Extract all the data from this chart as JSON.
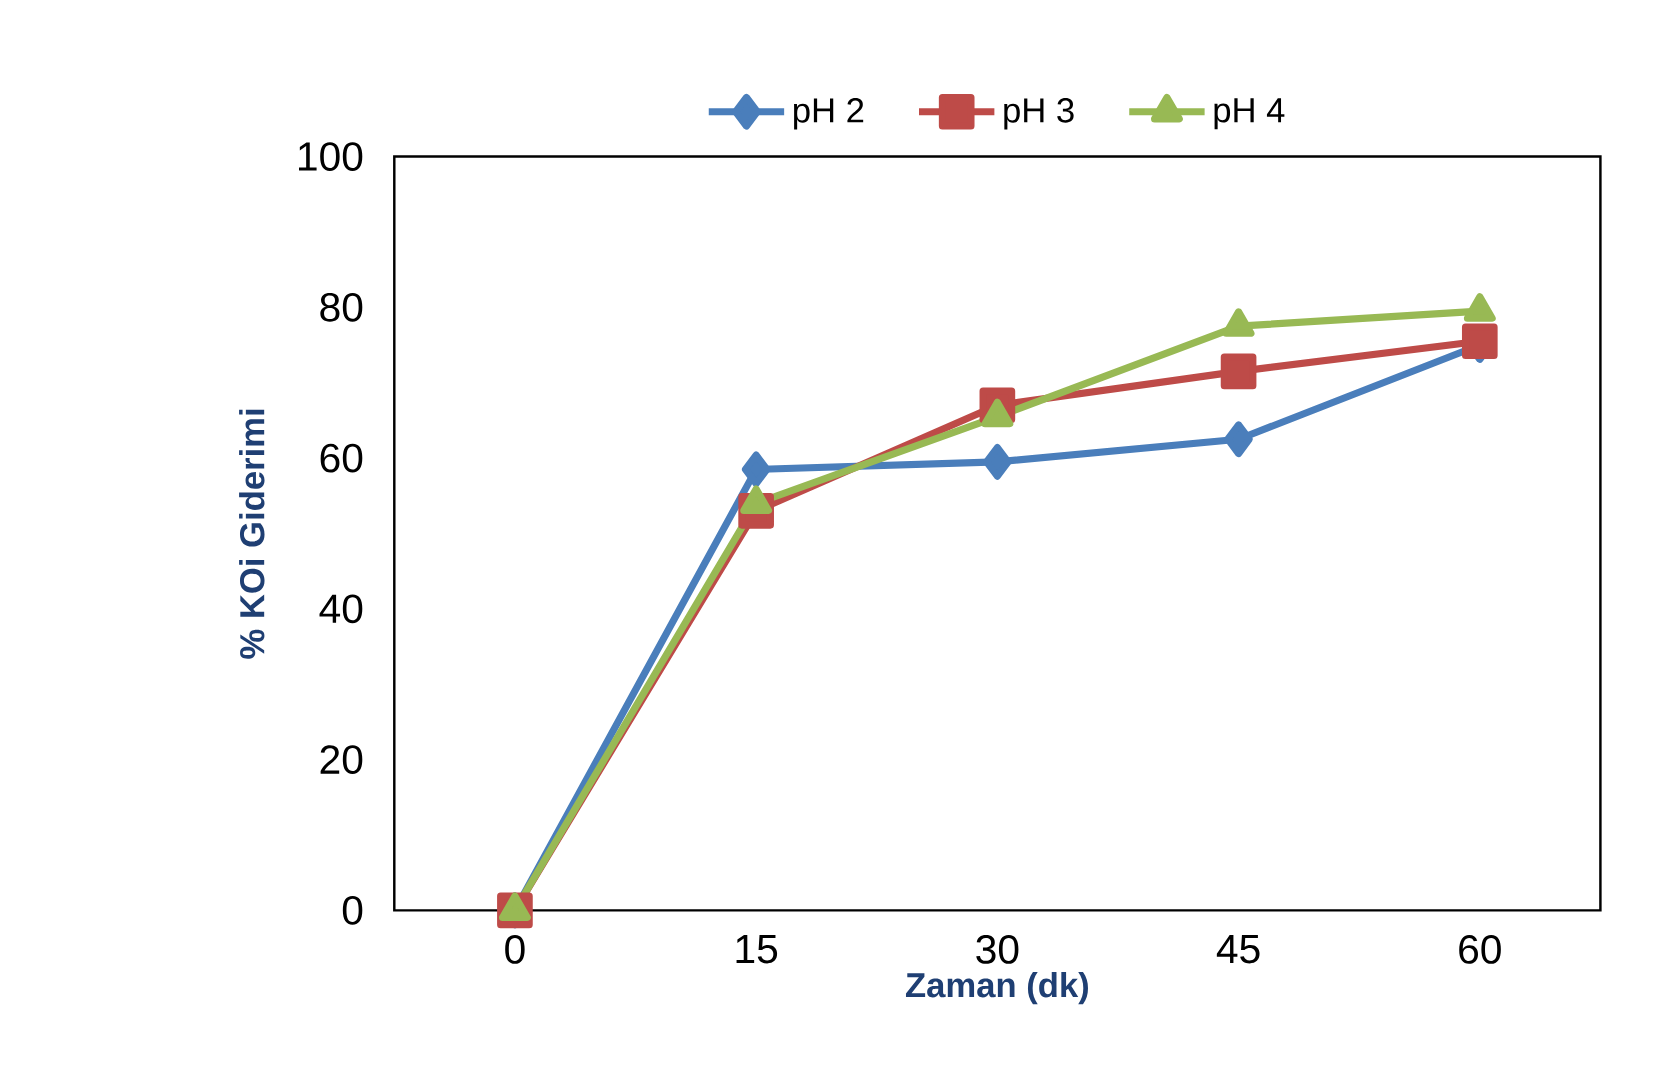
{
  "chart_data": {
    "type": "line",
    "xlabel": "Zaman (dk)",
    "ylabel": "% KOi Giderimi",
    "categories": [
      "0",
      "15",
      "30",
      "45",
      "60"
    ],
    "series": [
      {
        "name": "pH 2",
        "color": "#4a7ebb",
        "marker": "diamond",
        "values": [
          0,
          58.5,
          59.5,
          62.5,
          75
        ]
      },
      {
        "name": "pH 3",
        "color": "#be4b48",
        "marker": "square",
        "values": [
          0,
          53,
          67,
          71.5,
          75.5
        ]
      },
      {
        "name": "pH 4",
        "color": "#98b954",
        "marker": "triangle",
        "values": [
          0,
          54,
          65.5,
          77.5,
          79.5
        ]
      }
    ],
    "ylim": [
      0,
      100
    ],
    "yticks": [
      0,
      20,
      40,
      60,
      80,
      100
    ],
    "legend": "top",
    "grid": false
  }
}
